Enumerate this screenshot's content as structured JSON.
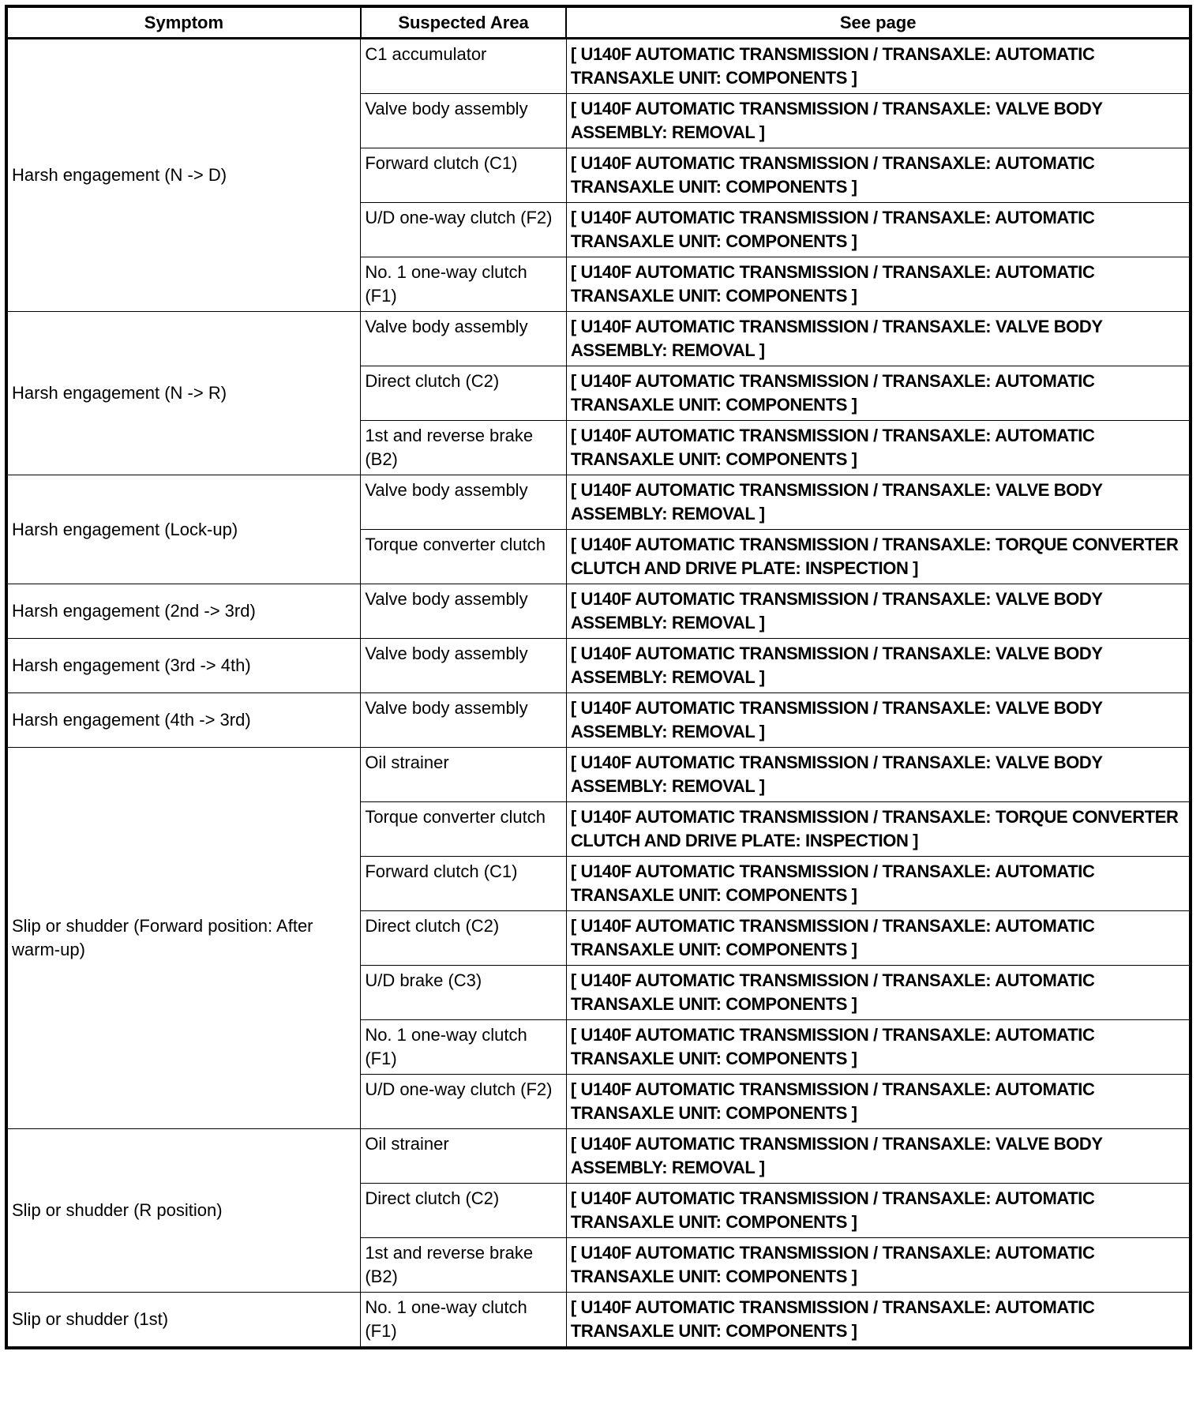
{
  "table": {
    "headers": [
      "Symptom",
      "Suspected Area",
      "See page"
    ],
    "groups": [
      {
        "symptom": "Harsh engagement (N -> D)",
        "rows": [
          {
            "area": "C1 accumulator",
            "page": "[ U140F AUTOMATIC TRANSMISSION / TRANSAXLE: AUTOMATIC TRANSAXLE UNIT: COMPONENTS ]"
          },
          {
            "area": "Valve body assembly",
            "page": "[ U140F AUTOMATIC TRANSMISSION / TRANSAXLE: VALVE BODY ASSEMBLY: REMOVAL ]"
          },
          {
            "area": "Forward clutch (C1)",
            "page": "[ U140F AUTOMATIC TRANSMISSION / TRANSAXLE: AUTOMATIC TRANSAXLE UNIT: COMPONENTS ]"
          },
          {
            "area": "U/D one-way clutch (F2)",
            "page": "[ U140F AUTOMATIC TRANSMISSION / TRANSAXLE: AUTOMATIC TRANSAXLE UNIT: COMPONENTS ]"
          },
          {
            "area": "No. 1 one-way clutch (F1)",
            "page": "[ U140F AUTOMATIC TRANSMISSION / TRANSAXLE: AUTOMATIC TRANSAXLE UNIT: COMPONENTS ]"
          }
        ]
      },
      {
        "symptom": "Harsh engagement (N -> R)",
        "rows": [
          {
            "area": "Valve body assembly",
            "page": "[ U140F AUTOMATIC TRANSMISSION / TRANSAXLE: VALVE BODY ASSEMBLY: REMOVAL ]"
          },
          {
            "area": "Direct clutch (C2)",
            "page": "[ U140F AUTOMATIC TRANSMISSION / TRANSAXLE: AUTOMATIC TRANSAXLE UNIT: COMPONENTS ]"
          },
          {
            "area": "1st and reverse brake (B2)",
            "page": "[ U140F AUTOMATIC TRANSMISSION / TRANSAXLE: AUTOMATIC TRANSAXLE UNIT: COMPONENTS ]"
          }
        ]
      },
      {
        "symptom": "Harsh engagement (Lock-up)",
        "rows": [
          {
            "area": "Valve body assembly",
            "page": "[ U140F AUTOMATIC TRANSMISSION / TRANSAXLE: VALVE BODY ASSEMBLY: REMOVAL ]"
          },
          {
            "area": "Torque converter clutch",
            "page": "[ U140F AUTOMATIC TRANSMISSION / TRANSAXLE: TORQUE CONVERTER CLUTCH AND DRIVE PLATE: INSPECTION ]"
          }
        ]
      },
      {
        "symptom": "Harsh engagement (2nd -> 3rd)",
        "rows": [
          {
            "area": "Valve body assembly",
            "page": "[ U140F AUTOMATIC TRANSMISSION / TRANSAXLE: VALVE BODY ASSEMBLY: REMOVAL ]"
          }
        ]
      },
      {
        "symptom": "Harsh engagement (3rd -> 4th)",
        "rows": [
          {
            "area": "Valve body assembly",
            "page": "[ U140F AUTOMATIC TRANSMISSION / TRANSAXLE: VALVE BODY ASSEMBLY: REMOVAL ]"
          }
        ]
      },
      {
        "symptom": "Harsh engagement (4th -> 3rd)",
        "rows": [
          {
            "area": "Valve body assembly",
            "page": "[ U140F AUTOMATIC TRANSMISSION / TRANSAXLE: VALVE BODY ASSEMBLY: REMOVAL ]"
          }
        ]
      },
      {
        "symptom": "Slip or shudder (Forward position: After warm-up)",
        "rows": [
          {
            "area": "Oil strainer",
            "page": "[ U140F AUTOMATIC TRANSMISSION / TRANSAXLE: VALVE BODY ASSEMBLY: REMOVAL ]"
          },
          {
            "area": "Torque converter clutch",
            "page": "[ U140F AUTOMATIC TRANSMISSION / TRANSAXLE: TORQUE CONVERTER CLUTCH AND DRIVE PLATE: INSPECTION ]"
          },
          {
            "area": "Forward clutch (C1)",
            "page": "[ U140F AUTOMATIC TRANSMISSION / TRANSAXLE: AUTOMATIC TRANSAXLE UNIT: COMPONENTS ]"
          },
          {
            "area": "Direct clutch (C2)",
            "page": "[ U140F AUTOMATIC TRANSMISSION / TRANSAXLE: AUTOMATIC TRANSAXLE UNIT: COMPONENTS ]"
          },
          {
            "area": "U/D brake (C3)",
            "page": "[ U140F AUTOMATIC TRANSMISSION / TRANSAXLE: AUTOMATIC TRANSAXLE UNIT: COMPONENTS ]"
          },
          {
            "area": "No. 1 one-way clutch (F1)",
            "page": "[ U140F AUTOMATIC TRANSMISSION / TRANSAXLE: AUTOMATIC TRANSAXLE UNIT: COMPONENTS ]"
          },
          {
            "area": "U/D one-way clutch (F2)",
            "page": "[ U140F AUTOMATIC TRANSMISSION / TRANSAXLE: AUTOMATIC TRANSAXLE UNIT: COMPONENTS ]"
          }
        ]
      },
      {
        "symptom": "Slip or shudder (R position)",
        "rows": [
          {
            "area": "Oil strainer",
            "page": "[ U140F AUTOMATIC TRANSMISSION / TRANSAXLE: VALVE BODY ASSEMBLY: REMOVAL ]"
          },
          {
            "area": "Direct clutch (C2)",
            "page": "[ U140F AUTOMATIC TRANSMISSION / TRANSAXLE: AUTOMATIC TRANSAXLE UNIT: COMPONENTS ]"
          },
          {
            "area": "1st and reverse brake (B2)",
            "page": "[ U140F AUTOMATIC TRANSMISSION / TRANSAXLE: AUTOMATIC TRANSAXLE UNIT: COMPONENTS ]"
          }
        ]
      },
      {
        "symptom": "Slip or shudder (1st)",
        "rows": [
          {
            "area": "No. 1 one-way clutch (F1)",
            "page": "[ U140F AUTOMATIC TRANSMISSION / TRANSAXLE: AUTOMATIC TRANSAXLE UNIT: COMPONENTS ]"
          }
        ]
      }
    ]
  }
}
